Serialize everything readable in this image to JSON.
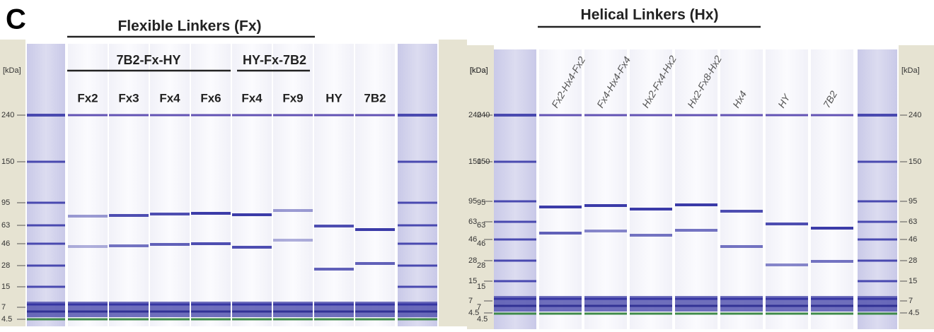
{
  "panel_label": "C",
  "unit": "[kDa]",
  "ladder": [
    "240",
    "150",
    "95",
    "63",
    "46",
    "28",
    "15",
    "7",
    "4.5"
  ],
  "left": {
    "header": "Flexible Linkers (Fx)",
    "groups": [
      "7B2-Fx-HY",
      "HY-Fx-7B2"
    ],
    "lanes": [
      "Fx2",
      "Fx3",
      "Fx4",
      "Fx6",
      "Fx4",
      "Fx9",
      "HY",
      "7B2"
    ]
  },
  "right": {
    "header": "Helical Linkers (Hx)",
    "lanes": [
      "Fx2-Hx4-Fx2",
      "Fx4-Hx4-Fx4",
      "Hx2-Fx4-Hx2",
      "Hx2-Fx8-Hx2",
      "Hx4",
      "HY",
      "7B2"
    ]
  }
}
